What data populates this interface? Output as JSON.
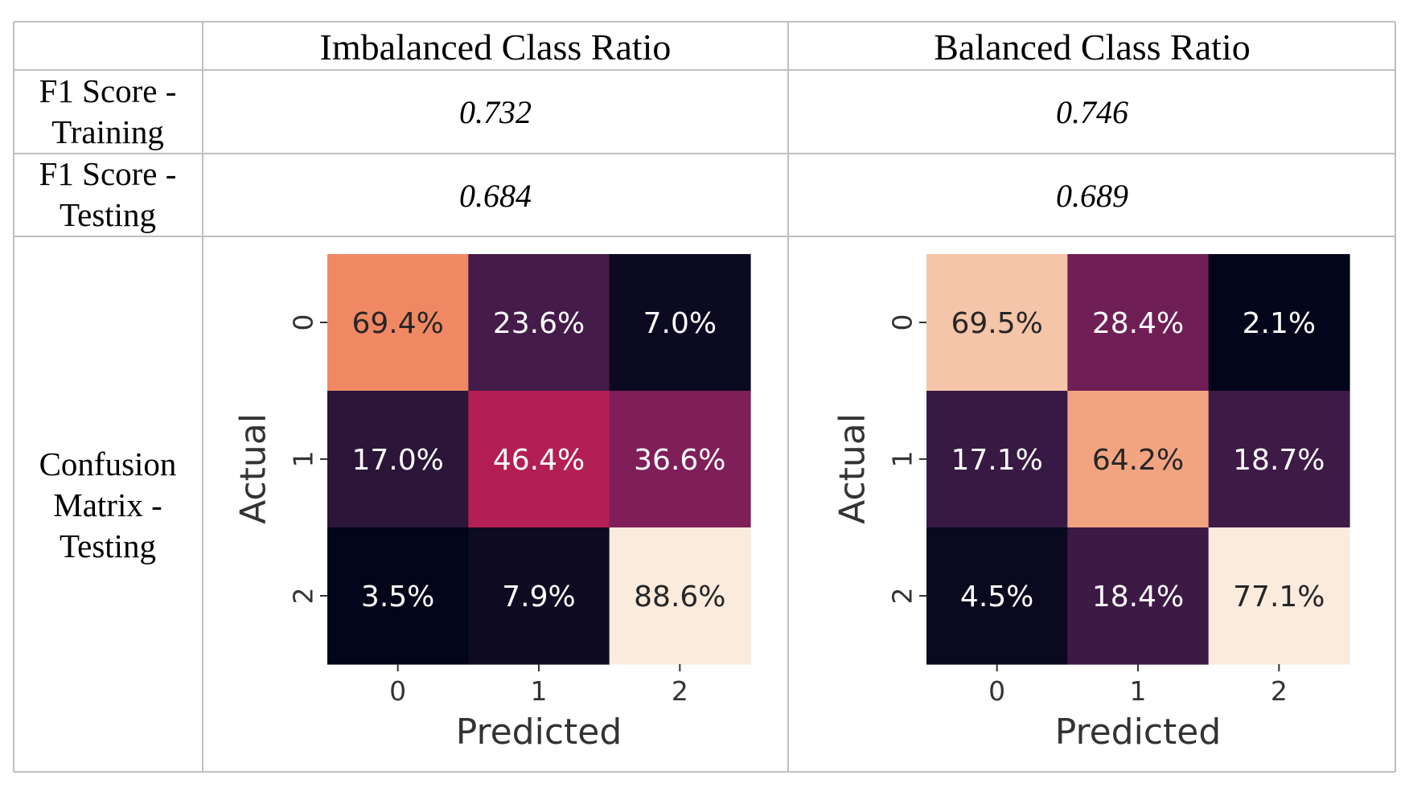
{
  "table": {
    "header": {
      "corner": "",
      "columns": [
        "Imbalanced Class Ratio",
        "Balanced Class Ratio"
      ]
    },
    "rows": [
      {
        "label": [
          "F1 Score -",
          "Training"
        ],
        "values": [
          "0.732",
          "0.746"
        ]
      },
      {
        "label": [
          "F1 Score -",
          "Testing"
        ],
        "values": [
          "0.684",
          "0.689"
        ]
      },
      {
        "label": [
          "Confusion",
          "Matrix -",
          "Testing"
        ]
      }
    ]
  },
  "chart_data": [
    {
      "type": "heatmap",
      "column": "Imbalanced Class Ratio",
      "xlabel": "Predicted",
      "ylabel": "Actual",
      "x_ticks": [
        "0",
        "1",
        "2"
      ],
      "y_ticks": [
        "0",
        "1",
        "2"
      ],
      "values": [
        [
          69.4,
          23.6,
          7.0
        ],
        [
          17.0,
          46.4,
          36.6
        ],
        [
          3.5,
          7.9,
          88.6
        ]
      ],
      "labels": [
        [
          "69.4%",
          "23.6%",
          "7.0%"
        ],
        [
          "17.0%",
          "46.4%",
          "36.6%"
        ],
        [
          "3.5%",
          "7.9%",
          "88.6%"
        ]
      ],
      "colorbar": false
    },
    {
      "type": "heatmap",
      "column": "Balanced Class Ratio",
      "xlabel": "Predicted",
      "ylabel": "Actual",
      "x_ticks": [
        "0",
        "1",
        "2"
      ],
      "y_ticks": [
        "0",
        "1",
        "2"
      ],
      "values": [
        [
          69.5,
          28.4,
          2.1
        ],
        [
          17.1,
          64.2,
          18.7
        ],
        [
          4.5,
          18.4,
          77.1
        ]
      ],
      "labels": [
        [
          "69.5%",
          "28.4%",
          "2.1%"
        ],
        [
          "17.1%",
          "64.2%",
          "18.7%"
        ],
        [
          "4.5%",
          "18.4%",
          "77.1%"
        ]
      ],
      "colorbar": false
    }
  ]
}
